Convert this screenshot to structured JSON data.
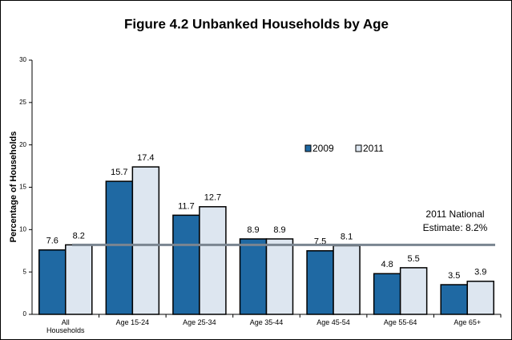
{
  "chart_data": {
    "type": "bar",
    "title": "Figure 4.2  Unbanked Households by Age",
    "y_label": "Percentage of Households",
    "categories": [
      "All Households",
      "Age 15-24",
      "Age 25-34",
      "Age 35-44",
      "Age 45-54",
      "Age 55-64",
      "Age 65+"
    ],
    "series": [
      {
        "name": "2009",
        "color": "#1f69a3",
        "values": [
          7.6,
          15.7,
          11.7,
          8.9,
          7.5,
          4.8,
          3.5
        ]
      },
      {
        "name": "2011",
        "color": "#dde6f0",
        "values": [
          8.2,
          17.4,
          12.7,
          8.9,
          8.1,
          5.5,
          3.9
        ]
      }
    ],
    "reference_line": {
      "value": 8.2,
      "color": "#7a8591",
      "label_lines": [
        "2011 National",
        "Estimate: 8.2%"
      ]
    },
    "ylim": [
      0,
      30
    ],
    "yticks": [
      0,
      5,
      10,
      15,
      20,
      25,
      30
    ],
    "grid": false
  }
}
